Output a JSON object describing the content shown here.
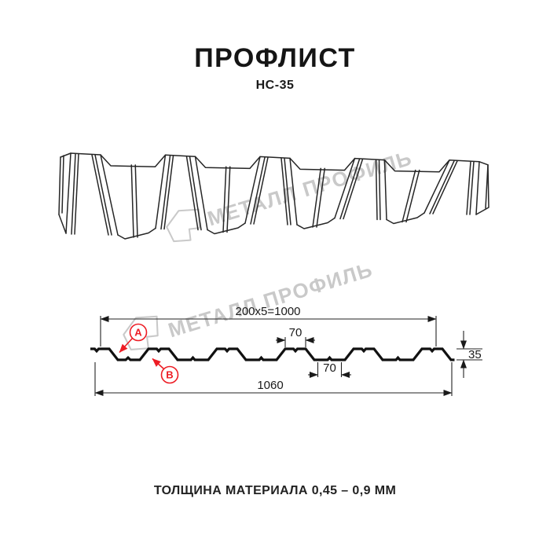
{
  "title": "ПРОФЛИСТ",
  "subtitle": "НС-35",
  "watermark": {
    "text": "МЕТАЛЛ ПРОФИЛЬ",
    "logo": "metal-profile-logo",
    "color": "#c9c9c9"
  },
  "drawing": {
    "dim_top_width": "200x5=1000",
    "dim_crest_width": "70",
    "dim_valley_width": "70",
    "dim_height": "35",
    "dim_total_width": "1060",
    "callout_a": "A",
    "callout_b": "B"
  },
  "footer": "ТОЛЩИНА МАТЕРИАЛА 0,45 – 0,9 ММ",
  "colors": {
    "accent_red": "#ed1c24",
    "line": "#1a1a1a",
    "watermark_gray": "#c9c9c9"
  }
}
